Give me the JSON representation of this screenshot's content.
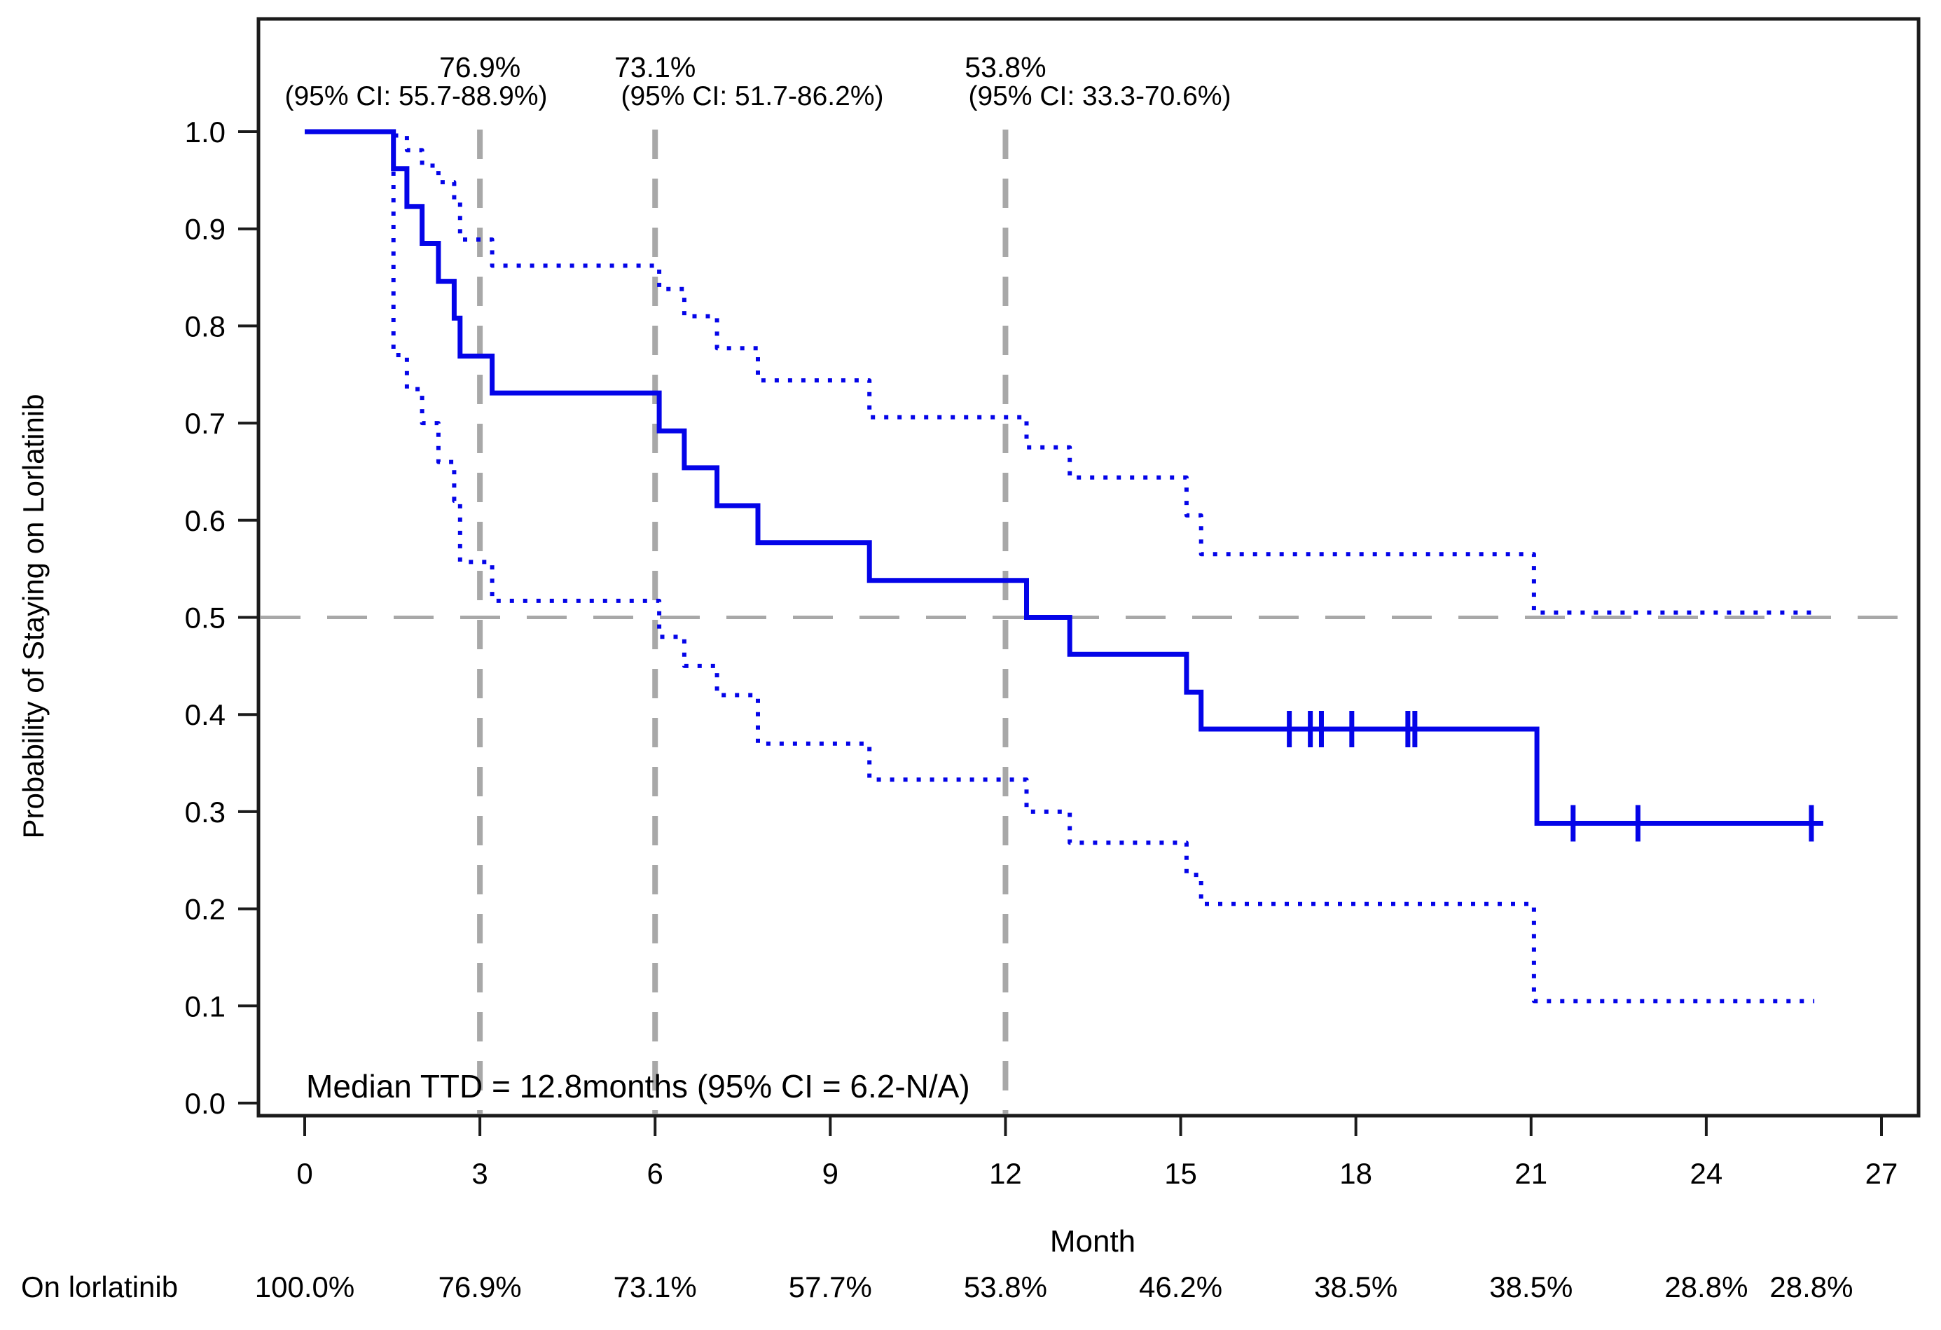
{
  "chart_data": {
    "type": "line",
    "subtype": "kaplan-meier-step",
    "title": "",
    "xlabel": "Month",
    "ylabel": "Probability of Staying on Lorlatinib",
    "xlim": [
      0,
      27
    ],
    "ylim": [
      0.0,
      1.0
    ],
    "grid": false,
    "x_ticks": [
      0,
      3,
      6,
      9,
      12,
      15,
      18,
      21,
      24,
      27
    ],
    "y_tick_labels": [
      "1.0",
      "0.9",
      "0.8",
      "0.7",
      "0.6",
      "0.5",
      "0.4",
      "0.3",
      "0.2",
      "0.1",
      "0.0"
    ],
    "colors": {
      "series_blue": "#0404e8",
      "risk_text_blue": "#2222ff",
      "reference_gray": "#a8a8a8",
      "axis_black": "#1b1b1b"
    },
    "reference_lines": {
      "vertical_months": [
        3,
        6,
        12
      ],
      "horizontal_probability": 0.5
    },
    "annotations": [
      {
        "month": 3,
        "value": "76.9%",
        "ci": "(95% CI: 55.7-88.9%)"
      },
      {
        "month": 6,
        "value": "73.1%",
        "ci": "(95% CI: 51.7-86.2%)"
      },
      {
        "month": 12,
        "value": "53.8%",
        "ci": "(95% CI: 33.3-70.6%)"
      }
    ],
    "median_label": "Median TTD = 12.8months (95% CI = 6.2-N/A)",
    "series": [
      {
        "name": "KM estimate",
        "style": "solid",
        "start": [
          0,
          1.0
        ],
        "end_month": 25.85,
        "steps": [
          [
            1.52,
            0.962
          ],
          [
            1.75,
            0.923
          ],
          [
            2.01,
            0.885
          ],
          [
            2.29,
            0.846
          ],
          [
            2.56,
            0.808
          ],
          [
            2.66,
            0.769
          ],
          [
            3.21,
            0.731
          ],
          [
            6.07,
            0.692
          ],
          [
            6.5,
            0.654
          ],
          [
            7.06,
            0.615
          ],
          [
            7.76,
            0.577
          ],
          [
            9.67,
            0.538
          ],
          [
            12.36,
            0.5
          ],
          [
            13.1,
            0.462
          ],
          [
            15.1,
            0.423
          ],
          [
            15.35,
            0.385
          ],
          [
            21.1,
            0.288
          ]
        ]
      },
      {
        "name": "Upper 95% CI",
        "style": "dotted",
        "start": [
          0,
          1.0
        ],
        "end_month": 25.85,
        "steps": [
          [
            1.52,
            0.996
          ],
          [
            1.75,
            0.981
          ],
          [
            2.01,
            0.965
          ],
          [
            2.29,
            0.948
          ],
          [
            2.56,
            0.93
          ],
          [
            2.66,
            0.889
          ],
          [
            3.21,
            0.862
          ],
          [
            6.07,
            0.838
          ],
          [
            6.5,
            0.81
          ],
          [
            7.06,
            0.777
          ],
          [
            7.76,
            0.744
          ],
          [
            9.67,
            0.706
          ],
          [
            12.36,
            0.675
          ],
          [
            13.1,
            0.644
          ],
          [
            15.1,
            0.605
          ],
          [
            15.35,
            0.565
          ],
          [
            21.05,
            0.505
          ]
        ]
      },
      {
        "name": "Lower 95% CI",
        "style": "dotted",
        "start": [
          1.52,
          1.0
        ],
        "end_month": 25.85,
        "steps": [
          [
            1.52,
            0.77
          ],
          [
            1.75,
            0.735
          ],
          [
            2.01,
            0.7
          ],
          [
            2.29,
            0.66
          ],
          [
            2.56,
            0.62
          ],
          [
            2.66,
            0.557
          ],
          [
            3.21,
            0.517
          ],
          [
            6.07,
            0.48
          ],
          [
            6.5,
            0.45
          ],
          [
            7.06,
            0.42
          ],
          [
            7.76,
            0.37
          ],
          [
            9.67,
            0.333
          ],
          [
            12.36,
            0.3
          ],
          [
            13.1,
            0.268
          ],
          [
            15.1,
            0.235
          ],
          [
            15.35,
            0.205
          ],
          [
            21.05,
            0.105
          ]
        ]
      }
    ],
    "censor_marks": [
      [
        16.86,
        0.385
      ],
      [
        17.22,
        0.385
      ],
      [
        17.41,
        0.385
      ],
      [
        17.93,
        0.385
      ],
      [
        18.89,
        0.385
      ],
      [
        19.01,
        0.385
      ],
      [
        21.72,
        0.288
      ],
      [
        22.83,
        0.288
      ],
      [
        25.8,
        0.288
      ]
    ],
    "risk_row": {
      "label": "On lorlatinib",
      "entries": [
        {
          "month": 0,
          "value": "100.0%"
        },
        {
          "month": 3,
          "value": "76.9%"
        },
        {
          "month": 6,
          "value": "73.1%"
        },
        {
          "month": 9,
          "value": "57.7%"
        },
        {
          "month": 12,
          "value": "53.8%"
        },
        {
          "month": 15,
          "value": "46.2%"
        },
        {
          "month": 18,
          "value": "38.5%"
        },
        {
          "month": 21,
          "value": "38.5%"
        },
        {
          "month": 24,
          "value": "28.8%"
        },
        {
          "month": 25.8,
          "value": "28.8%"
        }
      ]
    }
  }
}
